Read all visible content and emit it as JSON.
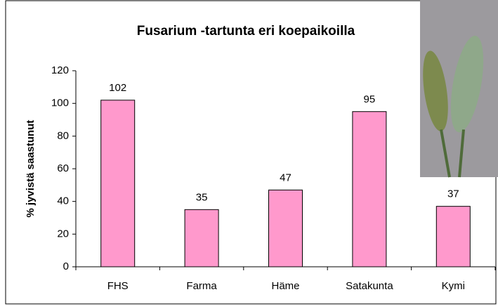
{
  "chart_data": {
    "type": "bar",
    "title": "Fusarium -tartunta eri koepaikoilla",
    "y_label": "% jyvistä saastunut",
    "categories": [
      "FHS",
      "Farma",
      "Häme",
      "Satakunta",
      "Kymi"
    ],
    "values": [
      102,
      35,
      47,
      95,
      37
    ],
    "color": "#ff99cc",
    "ylim": [
      0,
      120
    ],
    "yticks": [
      0,
      20,
      40,
      60,
      80,
      100,
      120
    ],
    "grid": false
  }
}
